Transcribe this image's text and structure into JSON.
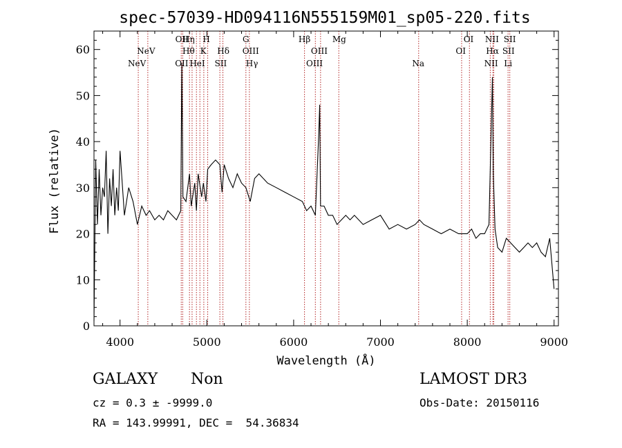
{
  "chart_data": {
    "type": "line",
    "title": "spec-57039-HD094116N555159M01_sp05-220.fits",
    "xlabel": "Wavelength (Å)",
    "ylabel": "Flux (relative)",
    "xlim": [
      3700,
      9050
    ],
    "ylim": [
      0,
      64
    ],
    "xticks": [
      4000,
      5000,
      6000,
      7000,
      8000,
      9000
    ],
    "yticks": [
      0,
      10,
      20,
      30,
      40,
      50,
      60
    ],
    "minor_x_step": 200,
    "minor_y_step": 2,
    "series": [
      {
        "name": "flux",
        "x": [
          3700,
          3720,
          3740,
          3760,
          3780,
          3800,
          3820,
          3840,
          3860,
          3880,
          3900,
          3920,
          3940,
          3960,
          3980,
          4000,
          4050,
          4100,
          4150,
          4200,
          4250,
          4300,
          4340,
          4400,
          4450,
          4500,
          4550,
          4600,
          4650,
          4700,
          4712,
          4725,
          4760,
          4800,
          4820,
          4861,
          4880,
          4900,
          4940,
          4960,
          4990,
          5010,
          5050,
          5100,
          5150,
          5175,
          5200,
          5250,
          5300,
          5350,
          5400,
          5450,
          5500,
          5550,
          5600,
          5700,
          5800,
          5900,
          6000,
          6100,
          6150,
          6200,
          6250,
          6290,
          6300,
          6310,
          6350,
          6400,
          6450,
          6500,
          6550,
          6600,
          6650,
          6700,
          6800,
          6900,
          7000,
          7100,
          7200,
          7300,
          7400,
          7450,
          7500,
          7600,
          7700,
          7800,
          7900,
          8000,
          8050,
          8100,
          8150,
          8200,
          8250,
          8270,
          8290,
          8300,
          8320,
          8350,
          8400,
          8450,
          8500,
          8550,
          8600,
          8650,
          8700,
          8750,
          8800,
          8850,
          8900,
          8950,
          9000
        ],
        "values": [
          1,
          36,
          22,
          34,
          24,
          30,
          28,
          38,
          20,
          32,
          26,
          34,
          24,
          30,
          25,
          38,
          24,
          30,
          27,
          22,
          26,
          24,
          25,
          23,
          24,
          23,
          25,
          24,
          23,
          25,
          57,
          28,
          27,
          33,
          26,
          31,
          25,
          33,
          28,
          31,
          27,
          34,
          35,
          36,
          35,
          29,
          35,
          32,
          30,
          33,
          31,
          30,
          27,
          32,
          33,
          31,
          30,
          29,
          28,
          27,
          25,
          26,
          24,
          42,
          48,
          26,
          26,
          24,
          24,
          22,
          23,
          24,
          23,
          24,
          22,
          23,
          24,
          21,
          22,
          21,
          22,
          23,
          22,
          21,
          20,
          21,
          20,
          20,
          21,
          19,
          20,
          20,
          22,
          38,
          54,
          33,
          21,
          17,
          16,
          19,
          18,
          17,
          16,
          17,
          18,
          17,
          18,
          16,
          15,
          19,
          8
        ]
      }
    ],
    "lines_upper": [
      {
        "label": "OII",
        "x": 4713
      },
      {
        "label": "Hη",
        "x": 4790
      },
      {
        "label": "H",
        "x": 4995
      },
      {
        "label": "G",
        "x": 5450
      },
      {
        "label": "Hβ",
        "x": 6125
      },
      {
        "label": "Mg",
        "x": 6525
      },
      {
        "label": "OI",
        "x": 8015
      },
      {
        "label": "NII",
        "x": 8285
      },
      {
        "label": "SII",
        "x": 8490
      }
    ],
    "lines_middle": [
      {
        "label": "NeV",
        "x": 4300
      },
      {
        "label": "Hθ",
        "x": 4790
      },
      {
        "label": "K",
        "x": 4960
      },
      {
        "label": "Hδ",
        "x": 5190
      },
      {
        "label": "OIII",
        "x": 5505
      },
      {
        "label": "OIII",
        "x": 6295
      },
      {
        "label": "OI",
        "x": 7925
      },
      {
        "label": "Hα",
        "x": 8290
      },
      {
        "label": "SII",
        "x": 8475
      }
    ],
    "lines_lower": [
      {
        "label": "NeV",
        "x": 4195
      },
      {
        "label": "OII",
        "x": 4710
      },
      {
        "label": "HeI",
        "x": 4890
      },
      {
        "label": "SII",
        "x": 5160
      },
      {
        "label": "Hγ",
        "x": 5520
      },
      {
        "label": "OIII",
        "x": 6240
      },
      {
        "label": "Na",
        "x": 7435
      },
      {
        "label": "NII",
        "x": 8275
      },
      {
        "label": "Li",
        "x": 8470
      }
    ],
    "marker_x": [
      4210,
      4320,
      4705,
      4722,
      4800,
      4830,
      4880,
      4920,
      4965,
      5010,
      5150,
      5185,
      5450,
      5490,
      6125,
      6250,
      6310,
      6520,
      7440,
      7935,
      8025,
      8265,
      8295,
      8305,
      8470,
      8490
    ]
  },
  "object_class": "GALAXY",
  "object_subclass": "Non",
  "survey": "LAMOST DR3",
  "redshift_line": "cz = 0.3 ± -9999.0",
  "obs_date_line": "Obs-Date: 20150116",
  "coords_line": "RA = 143.99991, DEC =  54.36834"
}
